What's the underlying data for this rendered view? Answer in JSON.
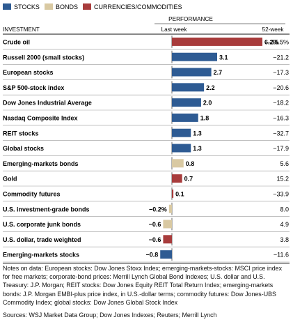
{
  "legend": [
    {
      "label": "STOCKS",
      "color": "#2E5B93"
    },
    {
      "label": "BONDS",
      "color": "#D9C9A2"
    },
    {
      "label": "CURRENCIES/COMMODITIES",
      "color": "#A83C3C"
    }
  ],
  "header": {
    "performance": "PERFORMANCE",
    "investment": "INVESTMENT",
    "last_week": "Last week",
    "week52": "52-week"
  },
  "chart_data": {
    "type": "bar",
    "orientation": "horizontal",
    "value_unit": "%",
    "categories": [
      "Crude oil",
      "Russell 2000 (small stocks)",
      "European stocks",
      "S&P 500-stock index",
      "Dow Jones Industrial Average",
      "Nasdaq Composite Index",
      "REIT stocks",
      "Global stocks",
      "Emerging-markets bonds",
      "Gold",
      "Commodity futures",
      "U.S. investment-grade bonds",
      "U.S. corporate junk bonds",
      "U.S. dollar, trade weighted",
      "Emerging-markets stocks"
    ],
    "values": [
      6.2,
      3.1,
      2.7,
      2.2,
      2.0,
      1.8,
      1.3,
      1.3,
      0.8,
      0.7,
      0.1,
      -0.2,
      -0.6,
      -0.6,
      -0.8
    ],
    "labels": [
      "6.2%",
      "3.1",
      "2.7",
      "2.2",
      "2.0",
      "1.8",
      "1.3",
      "1.3",
      "0.8",
      "0.7",
      "0.1",
      "−0.2%",
      "−0.6",
      "−0.6",
      "−0.8"
    ],
    "groups": [
      "commodity",
      "stock",
      "stock",
      "stock",
      "stock",
      "stock",
      "stock",
      "stock",
      "bond",
      "commodity",
      "commodity",
      "bond",
      "bond",
      "commodity",
      "stock"
    ],
    "week52": [
      "−35.5%",
      "−21.2",
      "−17.3",
      "−20.6",
      "−18.2",
      "−16.3",
      "−32.7",
      "−17.9",
      "5.6",
      "15.2",
      "−33.9",
      "8.0",
      "4.9",
      "3.8",
      "−11.6"
    ],
    "group_colors": {
      "stock": "#2E5B93",
      "bond": "#D9C9A2",
      "commodity": "#A83C3C"
    }
  },
  "notes": "Notes on data: European stocks: Dow Jones Stoxx Index; emerging-markets-stocks: MSCI price index for free markets; corporate-bond prices: Merrill Lynch Global Bond Indexes; U.S. dollar and U.S. Treasury: J.P. Morgan; REIT stocks: Dow Jones Equity REIT Total Return Index; emerging-markets bonds: J.P. Morgan EMBI-plus price index, in U.S.-dollar terms; commodity futures: Dow Jones-UBS Commodity Index; global stocks: Dow Jones Global Stock Index",
  "sources": "Sources: WSJ Market Data Group; Dow Jones Indexes; Reuters; Merrill Lynch"
}
